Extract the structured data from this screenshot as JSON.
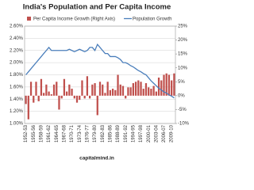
{
  "chart_data": {
    "type": "bar",
    "title": "India's Population and Per Capita Income",
    "footer": "capitalmind.in",
    "categories": [
      "1952-53",
      null,
      null,
      "1955-56",
      null,
      null,
      "1958-59",
      null,
      null,
      "1961-62",
      null,
      null,
      "1964-65",
      null,
      null,
      "1967-68",
      null,
      null,
      "1970-71",
      null,
      null,
      "1973-74",
      null,
      null,
      "1976-77",
      null,
      null,
      "1979-80",
      null,
      null,
      "1982-83",
      null,
      null,
      "1985-86",
      null,
      null,
      "1988-89",
      null,
      null,
      "1991-92",
      null,
      null,
      "1994-95",
      null,
      null,
      "1997-98",
      null,
      null,
      "2000-01",
      null,
      null,
      "2003-04",
      null,
      null,
      "2006-07",
      null,
      null,
      "2009-10",
      null
    ],
    "series": [
      {
        "name": "Per Capita Income Growth (Right Axis)",
        "type": "bar",
        "axis": "y2",
        "color": "#c0504d",
        "values": [
          -3,
          -8.5,
          5,
          -2.5,
          5,
          -2,
          6,
          1,
          4,
          1.5,
          0.5,
          4,
          5,
          -5,
          -1,
          6,
          1.5,
          4,
          2.5,
          -1,
          -2.5,
          -1.5,
          5.5,
          -1,
          7,
          -1,
          4,
          4.5,
          -7,
          5,
          4,
          1,
          5,
          2,
          2.5,
          2,
          7.5,
          4,
          3.5,
          -1,
          3,
          3,
          4.5,
          5,
          5.5,
          5,
          2.5,
          4.5,
          3,
          2.5,
          3.5,
          1.5,
          6.5,
          5.5,
          7.5,
          8,
          7.5,
          5.5,
          8
        ]
      },
      {
        "name": "Population Growth",
        "type": "line",
        "color": "#4a7ebb",
        "values": [
          1.8,
          1.85,
          1.9,
          1.95,
          2.0,
          2.05,
          2.1,
          2.15,
          2.2,
          2.25,
          2.2,
          2.2,
          2.2,
          2.2,
          2.2,
          2.2,
          2.2,
          2.22,
          2.2,
          2.18,
          2.2,
          2.22,
          2.2,
          2.18,
          2.2,
          2.25,
          2.25,
          2.2,
          2.3,
          2.25,
          2.2,
          2.15,
          2.15,
          2.1,
          2.1,
          2.1,
          2.08,
          2.05,
          2.0,
          2.0,
          1.98,
          1.95,
          1.93,
          1.9,
          1.87,
          1.85,
          1.82,
          1.8,
          1.75,
          1.7,
          1.66,
          1.62,
          1.58,
          1.55,
          1.52,
          1.5,
          1.47,
          1.45,
          1.42
        ]
      }
    ],
    "ylim": [
      1.0,
      2.6
    ],
    "yticks": [
      {
        "value": 1.0,
        "label": "1.00%"
      },
      {
        "value": 1.2,
        "label": "1.20%"
      },
      {
        "value": 1.4,
        "label": "1.40%"
      },
      {
        "value": 1.6,
        "label": "1.60%"
      },
      {
        "value": 1.8,
        "label": "1.80%"
      },
      {
        "value": 2.0,
        "label": "2.00%"
      },
      {
        "value": 2.2,
        "label": "2.20%"
      },
      {
        "value": 2.4,
        "label": "2.40%"
      },
      {
        "value": 2.6,
        "label": "2.60%"
      }
    ],
    "y2lim": [
      -10,
      25
    ],
    "y2ticks": [
      {
        "value": -10,
        "label": "-10%"
      },
      {
        "value": -5,
        "label": "-5%"
      },
      {
        "value": 0,
        "label": "0%"
      },
      {
        "value": 5,
        "label": "5%"
      },
      {
        "value": 10,
        "label": "10%"
      },
      {
        "value": 15,
        "label": "15%"
      },
      {
        "value": 20,
        "label": "20%"
      },
      {
        "value": 25,
        "label": "25%"
      }
    ],
    "grid": true
  }
}
